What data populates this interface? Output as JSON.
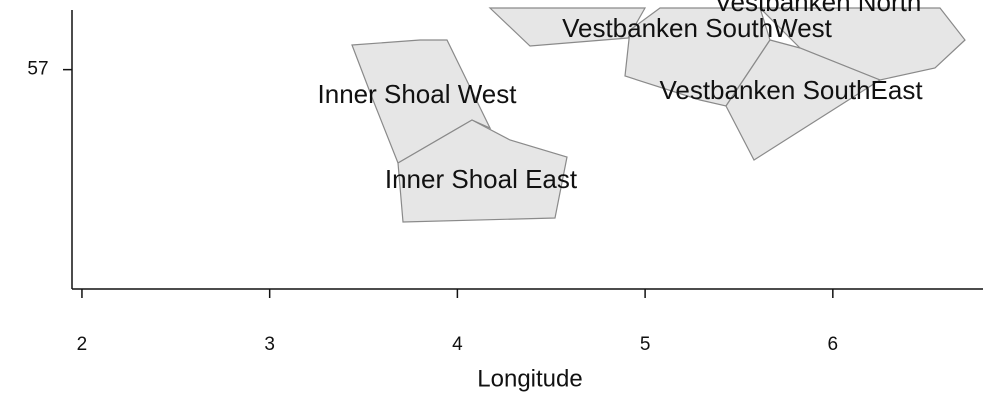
{
  "chart_data": {
    "type": "map",
    "x_label": "Longitude",
    "xlim": [
      1.947,
      6.8
    ],
    "xticks": [
      2,
      3,
      4,
      5,
      6
    ],
    "ylim": [
      56.37,
      57.2
    ],
    "yticks": [
      57
    ],
    "regions": [
      "Inner Shoal West",
      "Inner Shoal East",
      "Vestbanken SouthWest",
      "Vestbanken SouthEast",
      "Vestbanken North"
    ]
  }
}
